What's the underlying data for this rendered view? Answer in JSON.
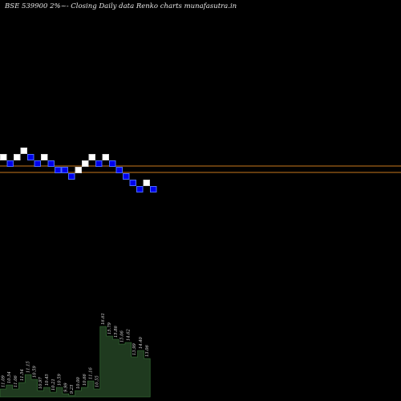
{
  "title": "BSE 539900  2%~-  Closing Daily data  Renko  charts munafasutra.in",
  "colors": {
    "background": "#000000",
    "brick_up": "#ffffff",
    "brick_down": "#0000ee",
    "brick_down_border": "#4c6cff",
    "reference_line": "#c8781e",
    "volume_fill": "#1f3a1f",
    "volume_stroke": "#3a7a3a"
  },
  "chart_data": {
    "type": "renko",
    "price_axis_range": [
      11.0,
      22.0
    ],
    "reference_levels": [
      15.7,
      16.3
    ],
    "bricks": [
      {
        "dir": "up",
        "level": 15
      },
      {
        "dir": "down",
        "level": 14
      },
      {
        "dir": "up",
        "level": 15
      },
      {
        "dir": "up",
        "level": 16
      },
      {
        "dir": "down",
        "level": 15
      },
      {
        "dir": "down",
        "level": 14
      },
      {
        "dir": "up",
        "level": 15
      },
      {
        "dir": "down",
        "level": 14
      },
      {
        "dir": "down",
        "level": 13
      },
      {
        "dir": "down",
        "level": 13
      },
      {
        "dir": "down",
        "level": 12
      },
      {
        "dir": "up",
        "level": 13
      },
      {
        "dir": "up",
        "level": 14
      },
      {
        "dir": "up",
        "level": 15
      },
      {
        "dir": "down",
        "level": 14
      },
      {
        "dir": "up",
        "level": 15
      },
      {
        "dir": "down",
        "level": 14
      },
      {
        "dir": "down",
        "level": 13
      },
      {
        "dir": "down",
        "level": 12
      },
      {
        "dir": "down",
        "level": 11
      },
      {
        "dir": "down",
        "level": 10
      },
      {
        "dir": "up",
        "level": 11
      },
      {
        "dir": "down",
        "level": 10
      }
    ],
    "volume_labels": [
      "11.09",
      "10.54",
      "11.06",
      "11.54",
      "11.15",
      "10.59",
      "10.97",
      "10.45",
      "10.21",
      "10.59",
      "9.99",
      "9.25",
      "10.00",
      "10.66",
      "11.16",
      "10.55",
      "16.61",
      "15.79",
      "15.86",
      "15.06",
      "14.62",
      "13.99",
      "14.40",
      "13.06"
    ],
    "volume_values": [
      10,
      15,
      10,
      18,
      28,
      22,
      8,
      12,
      6,
      12,
      4,
      2,
      8,
      12,
      20,
      10,
      88,
      76,
      72,
      66,
      68,
      50,
      58,
      48
    ],
    "volume_range": [
      0,
      100
    ]
  }
}
